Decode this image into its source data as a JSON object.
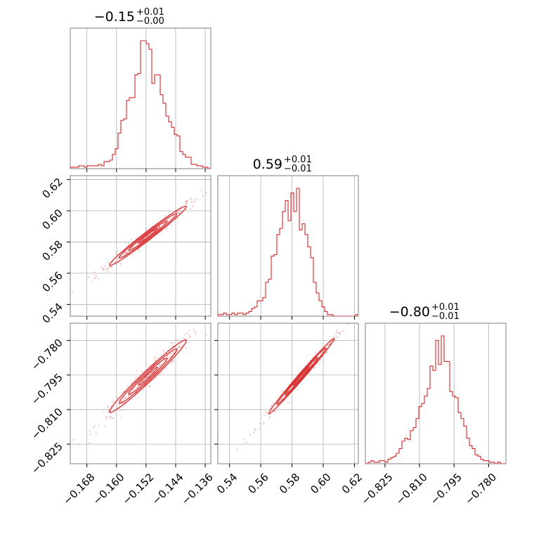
{
  "chart_data": {
    "type": "corner",
    "color": "#d62728",
    "parameters": [
      {
        "range": [
          -0.1725,
          -0.1345
        ],
        "ticks": [
          -0.168,
          -0.16,
          -0.152,
          -0.144,
          -0.136
        ],
        "tick_labels": [
          "−0.168",
          "−0.160",
          "−0.152",
          "−0.144",
          "−0.136"
        ],
        "title": {
          "base": "−0.15",
          "sup": "+0.01",
          "sub": "−0.00"
        },
        "hist_bins_start": -0.1725,
        "hist_bin_width": 0.00076,
        "hist_counts": [
          1,
          1,
          1,
          2,
          2,
          1,
          2,
          2,
          2,
          2,
          3,
          2,
          5,
          5,
          6,
          10,
          14,
          25,
          34,
          35,
          48,
          50,
          50,
          66,
          67,
          90,
          90,
          88,
          84,
          60,
          66,
          66,
          52,
          46,
          37,
          33,
          29,
          24,
          23,
          12,
          10,
          8,
          8,
          3,
          3,
          2,
          2,
          1,
          1,
          0
        ]
      },
      {
        "range": [
          0.5325,
          0.6225
        ],
        "ticks": [
          0.54,
          0.56,
          0.58,
          0.6,
          0.62
        ],
        "tick_labels": [
          "0.54",
          "0.56",
          "0.58",
          "0.60",
          "0.62"
        ],
        "title": {
          "base": "0.59",
          "sup": "+0.01",
          "sub": "−0.01"
        },
        "hist_bins_start": 0.5325,
        "hist_bin_width": 0.0018,
        "hist_counts": [
          1,
          1,
          2,
          1,
          1,
          2,
          1,
          2,
          2,
          1,
          2,
          3,
          5,
          6,
          10,
          10,
          12,
          22,
          24,
          39,
          40,
          53,
          57,
          68,
          75,
          62,
          80,
          68,
          83,
          56,
          60,
          53,
          45,
          38,
          22,
          15,
          10,
          6,
          3,
          1,
          1,
          0,
          0,
          0,
          0,
          0,
          0,
          0,
          0,
          1
        ]
      },
      {
        "range": [
          -0.8335,
          -0.7725
        ],
        "ticks": [
          -0.825,
          -0.81,
          -0.795,
          -0.78
        ],
        "tick_labels": [
          "−0.825",
          "−0.810",
          "−0.795",
          "−0.780"
        ],
        "title": {
          "base": "−0.80",
          "sup": "+0.01",
          "sub": "−0.01"
        },
        "hist_bins_start": -0.8335,
        "hist_bin_width": 0.00122,
        "hist_counts": [
          0,
          1,
          2,
          1,
          1,
          2,
          2,
          1,
          3,
          4,
          5,
          7,
          10,
          15,
          17,
          16,
          22,
          24,
          30,
          38,
          40,
          45,
          50,
          65,
          62,
          82,
          66,
          85,
          68,
          68,
          48,
          45,
          44,
          34,
          30,
          25,
          17,
          12,
          10,
          6,
          5,
          3,
          2,
          2,
          1,
          1,
          0,
          1,
          0,
          0
        ]
      }
    ],
    "pairs": [
      {
        "x_param": 0,
        "y_param": 1,
        "center": [
          -0.1515,
          0.584
        ],
        "sd": [
          0.0052,
          0.0095
        ],
        "corr": 0.985
      },
      {
        "x_param": 0,
        "y_param": 2,
        "center": [
          -0.1515,
          -0.7955
        ],
        "sd": [
          0.0052,
          0.0079
        ],
        "corr": 0.98
      },
      {
        "x_param": 1,
        "y_param": 2,
        "center": [
          0.586,
          -0.7955
        ],
        "sd": [
          0.0105,
          0.0082
        ],
        "corr": 0.993
      }
    ],
    "contour_levels": [
      0.5,
      1.0,
      1.5,
      2.0
    ],
    "grid": true
  }
}
